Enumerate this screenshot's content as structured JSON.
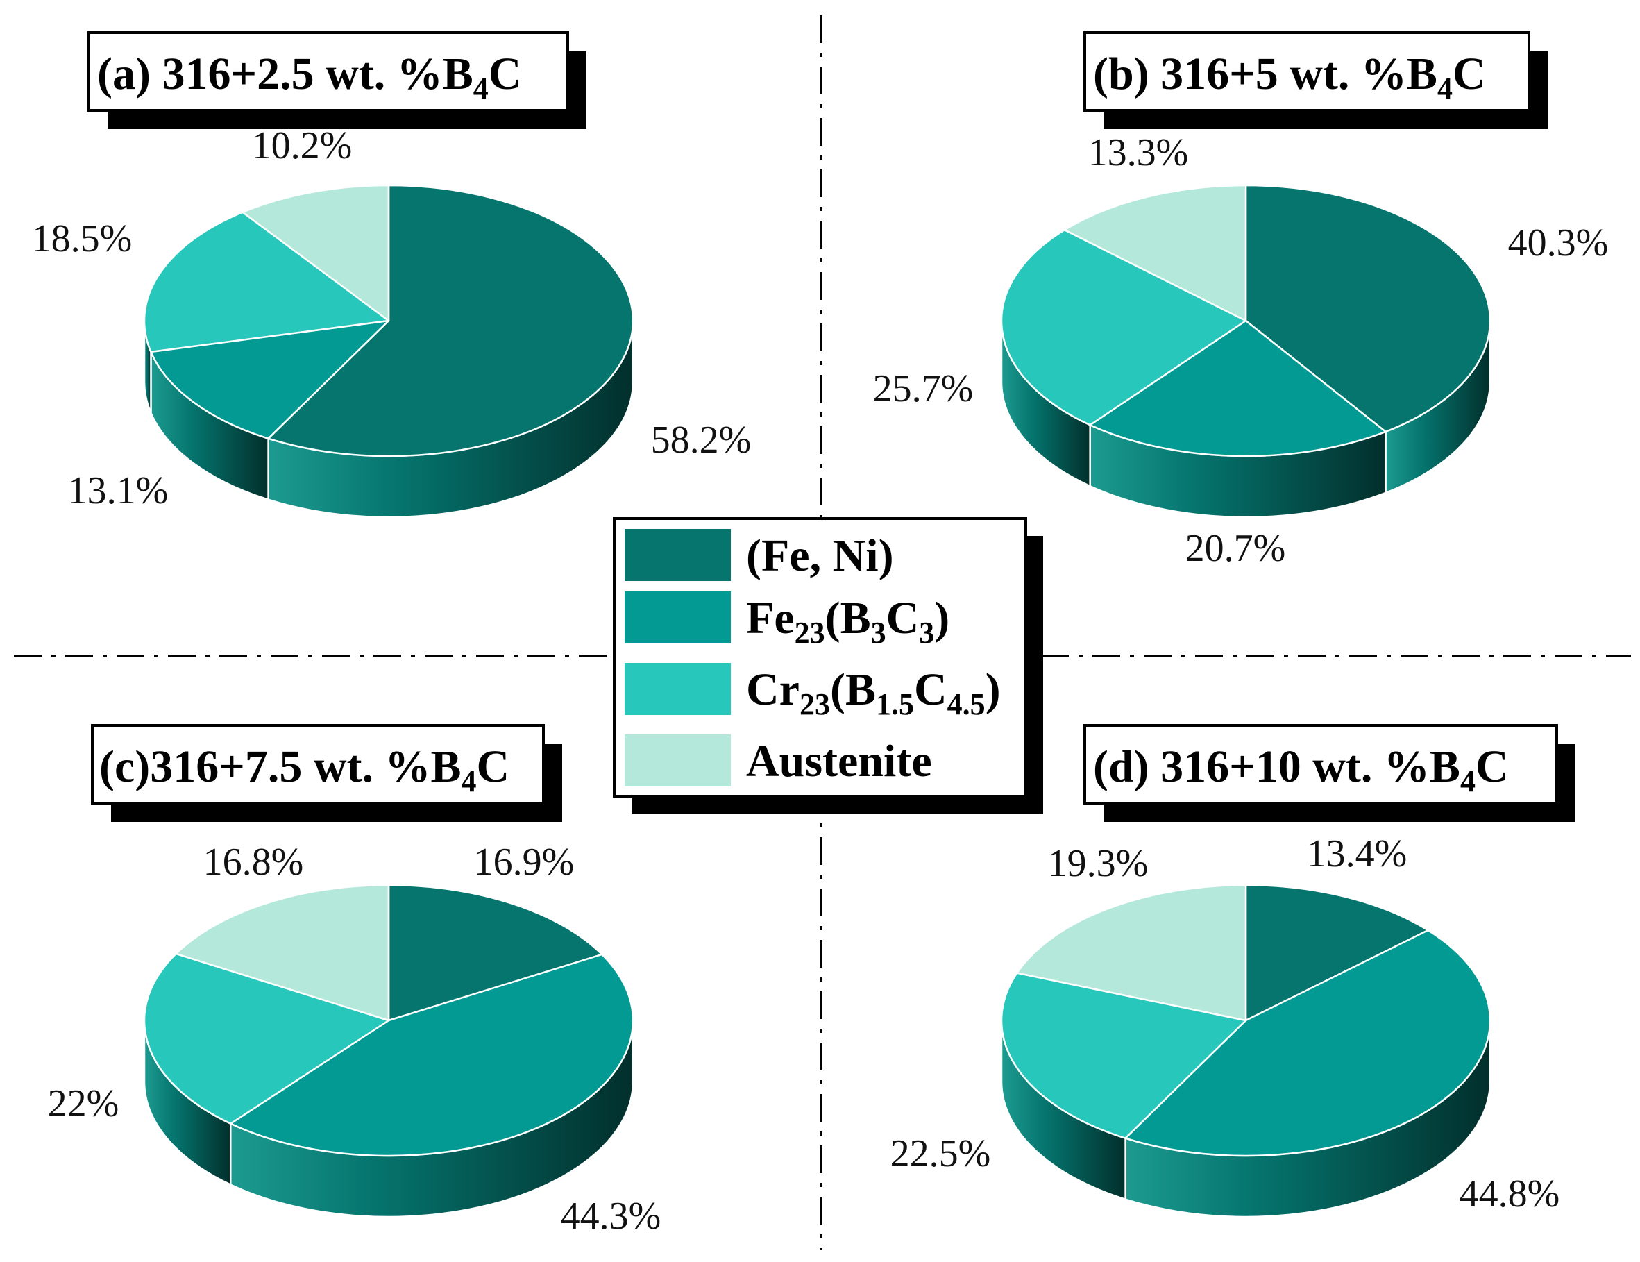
{
  "colors": {
    "fe_ni": "#05756e",
    "fe23": "#039a93",
    "cr23": "#28c7bb",
    "austenite": "#b3e8da",
    "side_dark": "#023a36"
  },
  "legend": {
    "items": [
      {
        "key": "fe_ni",
        "base": "(Fe, Ni)",
        "subs": []
      },
      {
        "key": "fe23",
        "base": "Fe",
        "subs": [
          "23",
          "(B",
          "3",
          "C",
          "3",
          ")"
        ]
      },
      {
        "key": "cr23",
        "base": "Cr",
        "subs": [
          "23",
          "(B",
          "1.5",
          "C",
          "4.5",
          ")"
        ]
      },
      {
        "key": "austenite",
        "base": "Austenite",
        "subs": []
      }
    ]
  },
  "chart_data": [
    {
      "type": "pie",
      "title_main": "(a)  316+2.5 wt. %B",
      "title_sub": "4",
      "title_end": "C",
      "categories": [
        "(Fe, Ni)",
        "Fe23(B3C3)",
        "Cr23(B1.5C4.5)",
        "Austenite"
      ],
      "values": [
        58.2,
        13.1,
        18.5,
        10.2
      ],
      "labels": [
        "58.2%",
        "13.1%",
        "18.5%",
        "10.2%"
      ]
    },
    {
      "type": "pie",
      "title_main": "(b)  316+5 wt. %B",
      "title_sub": "4",
      "title_end": "C",
      "categories": [
        "(Fe, Ni)",
        "Fe23(B3C3)",
        "Cr23(B1.5C4.5)",
        "Austenite"
      ],
      "values": [
        40.3,
        20.7,
        25.7,
        13.3
      ],
      "labels": [
        "40.3%",
        "20.7%",
        "25.7%",
        "13.3%"
      ]
    },
    {
      "type": "pie",
      "title_main": "(c)316+7.5 wt. %B",
      "title_sub": "4",
      "title_end": "C",
      "categories": [
        "(Fe, Ni)",
        "Fe23(B3C3)",
        "Cr23(B1.5C4.5)",
        "Austenite"
      ],
      "values": [
        16.9,
        44.3,
        22,
        16.8
      ],
      "labels": [
        "16.9%",
        "44.3%",
        "22%",
        "16.8%"
      ]
    },
    {
      "type": "pie",
      "title_main": "(d)  316+10 wt. %B",
      "title_sub": "4",
      "title_end": "C",
      "categories": [
        "(Fe, Ni)",
        "Fe23(B3C3)",
        "Cr23(B1.5C4.5)",
        "Austenite"
      ],
      "values": [
        13.4,
        44.8,
        22.5,
        19.3
      ],
      "labels": [
        "13.4%",
        "44.8%",
        "22.5%",
        "19.3%"
      ]
    }
  ]
}
